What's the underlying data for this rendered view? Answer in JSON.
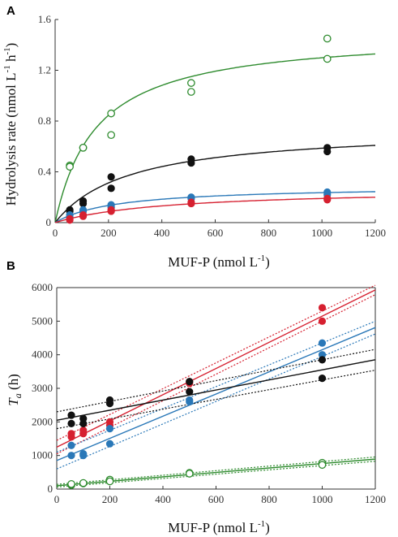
{
  "chart_data": [
    {
      "panel": "A",
      "type": "scatter",
      "xlabel": "MUF-P (nmol L⁻¹)",
      "ylabel": "Hydrolysis rate (nmol L⁻¹ h⁻¹)",
      "xlim": [
        0,
        1200
      ],
      "ylim": [
        0,
        1.6
      ],
      "xticks": [
        "0",
        "200",
        "400",
        "600",
        "800",
        "1000",
        "1200"
      ],
      "yticks": [
        "0",
        "0.4",
        "0.8",
        "1.2",
        "1.6"
      ],
      "grid": false,
      "series": [
        {
          "color": "#2e8b2e",
          "marker": "open-circle",
          "points": [
            [
              55,
              0.45
            ],
            [
              55,
              0.44
            ],
            [
              105,
              0.59
            ],
            [
              105,
              0.59
            ],
            [
              210,
              0.86
            ],
            [
              210,
              0.69
            ],
            [
              510,
              1.1
            ],
            [
              510,
              1.03
            ],
            [
              1020,
              1.45
            ],
            [
              1020,
              1.29
            ]
          ],
          "fit": {
            "model": "michaelis-menten",
            "vmax": 1.5,
            "km": 155
          }
        },
        {
          "color": "#111111",
          "marker": "filled-circle",
          "points": [
            [
              55,
              0.1
            ],
            [
              55,
              0.09
            ],
            [
              105,
              0.17
            ],
            [
              105,
              0.15
            ],
            [
              210,
              0.36
            ],
            [
              210,
              0.27
            ],
            [
              510,
              0.5
            ],
            [
              510,
              0.47
            ],
            [
              1020,
              0.59
            ],
            [
              1020,
              0.56
            ]
          ],
          "fit": {
            "model": "michaelis-menten",
            "vmax": 0.75,
            "km": 280
          }
        },
        {
          "color": "#2a78b8",
          "marker": "filled-circle",
          "points": [
            [
              55,
              0.04
            ],
            [
              55,
              0.06
            ],
            [
              105,
              0.09
            ],
            [
              105,
              0.1
            ],
            [
              210,
              0.14
            ],
            [
              210,
              0.12
            ],
            [
              510,
              0.2
            ],
            [
              510,
              0.19
            ],
            [
              1020,
              0.24
            ],
            [
              1020,
              0.22
            ]
          ],
          "fit": {
            "model": "michaelis-menten",
            "vmax": 0.29,
            "km": 230
          }
        },
        {
          "color": "#d62030",
          "marker": "filled-circle",
          "points": [
            [
              55,
              0.02
            ],
            [
              55,
              0.03
            ],
            [
              105,
              0.06
            ],
            [
              105,
              0.05
            ],
            [
              210,
              0.1
            ],
            [
              210,
              0.09
            ],
            [
              510,
              0.16
            ],
            [
              510,
              0.15
            ],
            [
              1020,
              0.19
            ],
            [
              1020,
              0.18
            ]
          ],
          "fit": {
            "model": "michaelis-menten",
            "vmax": 0.27,
            "km": 420
          }
        }
      ]
    },
    {
      "panel": "B",
      "type": "scatter",
      "xlabel": "MUF-P (nmol L⁻¹)",
      "ylabel": "T_a (h)",
      "xlim": [
        0,
        1200
      ],
      "ylim": [
        0,
        6000
      ],
      "xticks": [
        "0",
        "200",
        "400",
        "600",
        "800",
        "1000",
        "1200"
      ],
      "yticks": [
        "0",
        "1000",
        "2000",
        "3000",
        "4000",
        "5000",
        "6000"
      ],
      "grid": false,
      "series": [
        {
          "color": "#d62030",
          "marker": "filled-circle",
          "points": [
            [
              55,
              1550
            ],
            [
              55,
              1650
            ],
            [
              100,
              1650
            ],
            [
              100,
              1750
            ],
            [
              200,
              1900
            ],
            [
              200,
              2000
            ],
            [
              500,
              3150
            ],
            [
              500,
              3200
            ],
            [
              1000,
              5400
            ],
            [
              1000,
              5000
            ]
          ],
          "fit": {
            "intercept": 1250,
            "slope": 3.9
          },
          "ci_upper": {
            "intercept": 1450,
            "slope": 3.85
          },
          "ci_lower": {
            "intercept": 1050,
            "slope": 3.95
          }
        },
        {
          "color": "#2a78b8",
          "marker": "filled-circle",
          "points": [
            [
              55,
              1000
            ],
            [
              55,
              1300
            ],
            [
              100,
              1000
            ],
            [
              100,
              1050
            ],
            [
              200,
              1350
            ],
            [
              200,
              1800
            ],
            [
              500,
              2600
            ],
            [
              500,
              2650
            ],
            [
              1000,
              4000
            ],
            [
              1000,
              4350
            ]
          ],
          "fit": {
            "intercept": 850,
            "slope": 3.3
          },
          "ci_upper": {
            "intercept": 1100,
            "slope": 3.25
          },
          "ci_lower": {
            "intercept": 600,
            "slope": 3.35
          }
        },
        {
          "color": "#111111",
          "marker": "filled-circle",
          "points": [
            [
              55,
              1950
            ],
            [
              55,
              2200
            ],
            [
              100,
              1950
            ],
            [
              100,
              2100
            ],
            [
              200,
              2550
            ],
            [
              200,
              2650
            ],
            [
              500,
              2900
            ],
            [
              500,
              3200
            ],
            [
              1000,
              3300
            ],
            [
              1000,
              3850
            ]
          ],
          "fit": {
            "intercept": 2050,
            "slope": 1.5
          },
          "ci_upper": {
            "intercept": 2300,
            "slope": 1.55
          },
          "ci_lower": {
            "intercept": 1800,
            "slope": 1.45
          }
        },
        {
          "color": "#2e8b2e",
          "marker": "open-circle",
          "points": [
            [
              55,
              120
            ],
            [
              55,
              150
            ],
            [
              100,
              170
            ],
            [
              100,
              180
            ],
            [
              200,
              280
            ],
            [
              200,
              230
            ],
            [
              500,
              480
            ],
            [
              500,
              460
            ],
            [
              1000,
              780
            ],
            [
              1000,
              720
            ]
          ],
          "fit": {
            "intercept": 100,
            "slope": 0.66
          },
          "ci_upper": {
            "intercept": 140,
            "slope": 0.68
          },
          "ci_lower": {
            "intercept": 60,
            "slope": 0.64
          }
        }
      ]
    }
  ],
  "panels": {
    "a": {
      "letter": "A",
      "xlabel": "MUF-P (nmol L",
      "xlabel_sup": "-1",
      "xlabel_tail": ")",
      "ylabel_main": "Hydrolysis rate (nmol L",
      "ylabel_sup1": "-1",
      "ylabel_mid": " h",
      "ylabel_sup2": "-1",
      "ylabel_tail": ")"
    },
    "b": {
      "letter": "B",
      "xlabel": "MUF-P (nmol L",
      "xlabel_sup": "-1",
      "xlabel_tail": ")",
      "ylabel_main": "T",
      "ylabel_sub": "a",
      "ylabel_tail": " (h)"
    }
  }
}
